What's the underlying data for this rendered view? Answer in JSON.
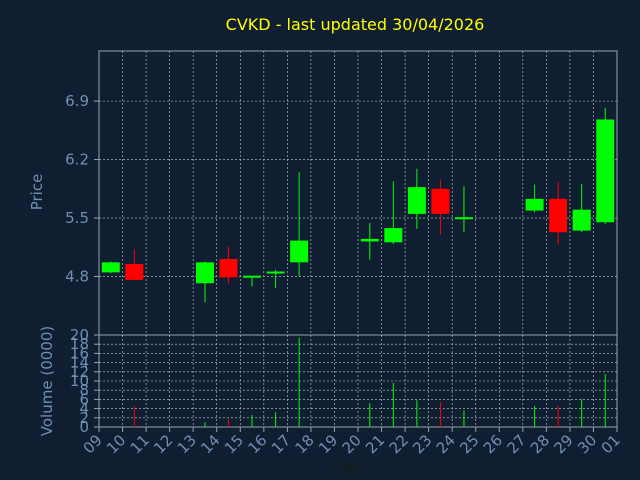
{
  "chart_data": {
    "type": "candlestick",
    "title": "CVKD - last updated 30/04/2026",
    "price_panel": {
      "ylabel": "Price",
      "yticks": [
        4.8,
        5.5,
        6.2,
        6.9
      ],
      "ylim": [
        4.1,
        7.5
      ]
    },
    "volume_panel": {
      "ylabel": "Volume (0000)",
      "yticks": [
        0,
        2,
        4,
        6,
        8,
        10,
        12,
        14,
        16,
        18,
        20
      ],
      "ylim": [
        0,
        20
      ]
    },
    "xlabel": "Day",
    "xticks": [
      "09",
      "10",
      "11",
      "12",
      "13",
      "14",
      "15",
      "16",
      "17",
      "18",
      "19",
      "20",
      "21",
      "22",
      "23",
      "24",
      "25",
      "26",
      "27",
      "28",
      "29",
      "30",
      "01"
    ],
    "grid": true,
    "colors": {
      "background": "#0f1e30",
      "frame": "#9aa3ad",
      "axis_text": "#6f8fb5",
      "title": "#ffff00",
      "up": "#00ff00",
      "down": "#ff0000",
      "grid": "#c8ccd2"
    },
    "candles": [
      {
        "day": "09",
        "open": 4.85,
        "high": 4.98,
        "low": 4.84,
        "close": 4.97
      },
      {
        "day": "10",
        "open": 4.95,
        "high": 5.13,
        "low": 4.75,
        "close": 4.76
      },
      {
        "day": "13",
        "open": 4.72,
        "high": 4.98,
        "low": 4.49,
        "close": 4.97
      },
      {
        "day": "14",
        "open": 5.01,
        "high": 5.16,
        "low": 4.72,
        "close": 4.79
      },
      {
        "day": "15",
        "open": 4.79,
        "high": 4.81,
        "low": 4.68,
        "close": 4.81
      },
      {
        "day": "16",
        "open": 4.84,
        "high": 4.88,
        "low": 4.66,
        "close": 4.86
      },
      {
        "day": "17",
        "open": 4.97,
        "high": 6.05,
        "low": 4.8,
        "close": 5.23
      },
      {
        "day": "20",
        "open": 5.22,
        "high": 5.44,
        "low": 5.0,
        "close": 5.25
      },
      {
        "day": "21",
        "open": 5.21,
        "high": 5.94,
        "low": 5.19,
        "close": 5.38
      },
      {
        "day": "22",
        "open": 5.55,
        "high": 6.09,
        "low": 5.37,
        "close": 5.87
      },
      {
        "day": "23",
        "open": 5.85,
        "high": 5.96,
        "low": 5.3,
        "close": 5.55
      },
      {
        "day": "24",
        "open": 5.49,
        "high": 5.88,
        "low": 5.33,
        "close": 5.51
      },
      {
        "day": "27",
        "open": 5.59,
        "high": 5.9,
        "low": 5.57,
        "close": 5.73
      },
      {
        "day": "28",
        "open": 5.73,
        "high": 5.93,
        "low": 5.18,
        "close": 5.33
      },
      {
        "day": "29",
        "open": 5.35,
        "high": 5.91,
        "low": 5.33,
        "close": 5.6
      },
      {
        "day": "30",
        "open": 5.45,
        "high": 6.82,
        "low": 5.43,
        "close": 6.68
      }
    ],
    "volume": [
      {
        "day": "10",
        "value": 4.6,
        "color": "down"
      },
      {
        "day": "13",
        "value": 1.0,
        "color": "up"
      },
      {
        "day": "14",
        "value": 1.7,
        "color": "down"
      },
      {
        "day": "15",
        "value": 2.6,
        "color": "up"
      },
      {
        "day": "16",
        "value": 3.2,
        "color": "up"
      },
      {
        "day": "17",
        "value": 19.4,
        "color": "up"
      },
      {
        "day": "20",
        "value": 5.2,
        "color": "up"
      },
      {
        "day": "21",
        "value": 9.6,
        "color": "up"
      },
      {
        "day": "22",
        "value": 5.8,
        "color": "up"
      },
      {
        "day": "23",
        "value": 5.4,
        "color": "down"
      },
      {
        "day": "24",
        "value": 3.6,
        "color": "up"
      },
      {
        "day": "27",
        "value": 4.6,
        "color": "up"
      },
      {
        "day": "28",
        "value": 4.6,
        "color": "down"
      },
      {
        "day": "29",
        "value": 6.0,
        "color": "up"
      },
      {
        "day": "30",
        "value": 11.5,
        "color": "up"
      }
    ]
  }
}
